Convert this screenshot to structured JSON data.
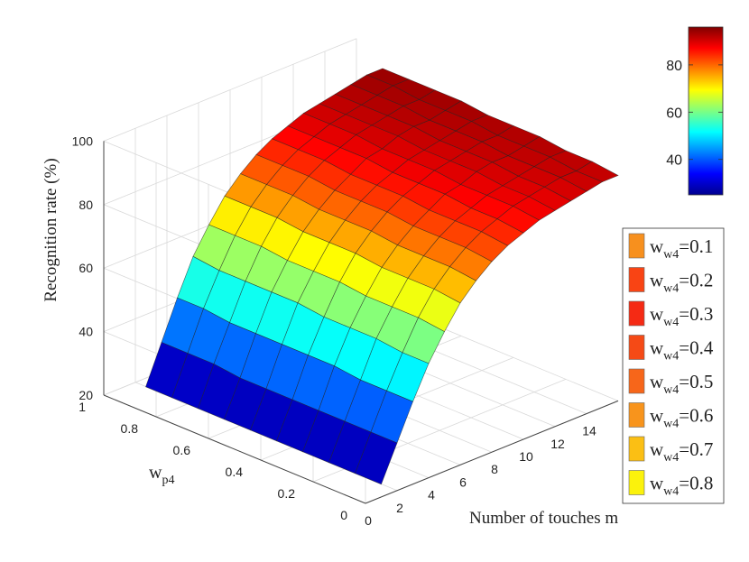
{
  "chart_data": {
    "type": "surface3d",
    "title": "",
    "xlabel": "Number of touches m",
    "ylabel": "w",
    "ylabel_sub": "p4",
    "zlabel": "Recognition rate (%)",
    "x_ticks": [
      "0",
      "2",
      "4",
      "6",
      "8",
      "10",
      "12",
      "14"
    ],
    "y_ticks": [
      "0",
      "0.2",
      "0.4",
      "0.6",
      "0.8",
      "1"
    ],
    "z_ticks": [
      "20",
      "40",
      "60",
      "80",
      "100"
    ],
    "xlim": [
      0,
      16
    ],
    "ylim": [
      0,
      1
    ],
    "zlim": [
      20,
      100
    ],
    "colorbar": {
      "ticks": [
        "40",
        "60",
        "80"
      ],
      "range": [
        25,
        96
      ],
      "colormap": "jet"
    },
    "legend": {
      "placement": "right",
      "entries": [
        {
          "base": "w",
          "sub": "w4",
          "value": "=0.1",
          "color": "#f7901e"
        },
        {
          "base": "w",
          "sub": "w4",
          "value": "=0.2",
          "color": "#f94414"
        },
        {
          "base": "w",
          "sub": "w4",
          "value": "=0.3",
          "color": "#f52a14"
        },
        {
          "base": "w",
          "sub": "w4",
          "value": "=0.4",
          "color": "#f54a16"
        },
        {
          "base": "w",
          "sub": "w4",
          "value": "=0.5",
          "color": "#f7661a"
        },
        {
          "base": "w",
          "sub": "w4",
          "value": "=0.6",
          "color": "#f8941c"
        },
        {
          "base": "w",
          "sub": "w4",
          "value": "=0.7",
          "color": "#fbbf14"
        },
        {
          "base": "w",
          "sub": "w4",
          "value": "=0.8",
          "color": "#fbf20c"
        }
      ]
    },
    "m": [
      1,
      2,
      3,
      4,
      5,
      6,
      7,
      8,
      9,
      10,
      11,
      12,
      13,
      14,
      15,
      16
    ],
    "wp4": [
      0,
      0.1,
      0.2,
      0.3,
      0.4,
      0.5,
      0.6,
      0.7,
      0.8,
      0.9
    ],
    "recognition_rate": [
      [
        24,
        24,
        24,
        24,
        24,
        24,
        24,
        24,
        24,
        24
      ],
      [
        35,
        35,
        35,
        35,
        35,
        35,
        35,
        36,
        36,
        36
      ],
      [
        46,
        46,
        46,
        47,
        47,
        47,
        47,
        47,
        48,
        48
      ],
      [
        56,
        56,
        57,
        57,
        57,
        58,
        58,
        58,
        58,
        59
      ],
      [
        64,
        65,
        65,
        65,
        66,
        66,
        66,
        67,
        67,
        67
      ],
      [
        71,
        72,
        72,
        72,
        73,
        73,
        73,
        74,
        74,
        74
      ],
      [
        76,
        77,
        77,
        77,
        78,
        78,
        78,
        79,
        79,
        79
      ],
      [
        80,
        81,
        81,
        81,
        82,
        82,
        82,
        83,
        83,
        83
      ],
      [
        83,
        84,
        84,
        84,
        85,
        85,
        85,
        86,
        86,
        86
      ],
      [
        85,
        86,
        86,
        87,
        87,
        87,
        88,
        88,
        88,
        88
      ],
      [
        87,
        88,
        88,
        88,
        89,
        89,
        89,
        90,
        90,
        90
      ],
      [
        88,
        89,
        89,
        90,
        90,
        90,
        91,
        91,
        91,
        91
      ],
      [
        89,
        90,
        90,
        91,
        91,
        91,
        92,
        92,
        92,
        92
      ],
      [
        90,
        91,
        91,
        91,
        92,
        92,
        92,
        93,
        93,
        93
      ],
      [
        91,
        91,
        92,
        92,
        92,
        93,
        93,
        93,
        94,
        94
      ],
      [
        91,
        92,
        92,
        93,
        93,
        93,
        94,
        94,
        94,
        94
      ]
    ]
  }
}
